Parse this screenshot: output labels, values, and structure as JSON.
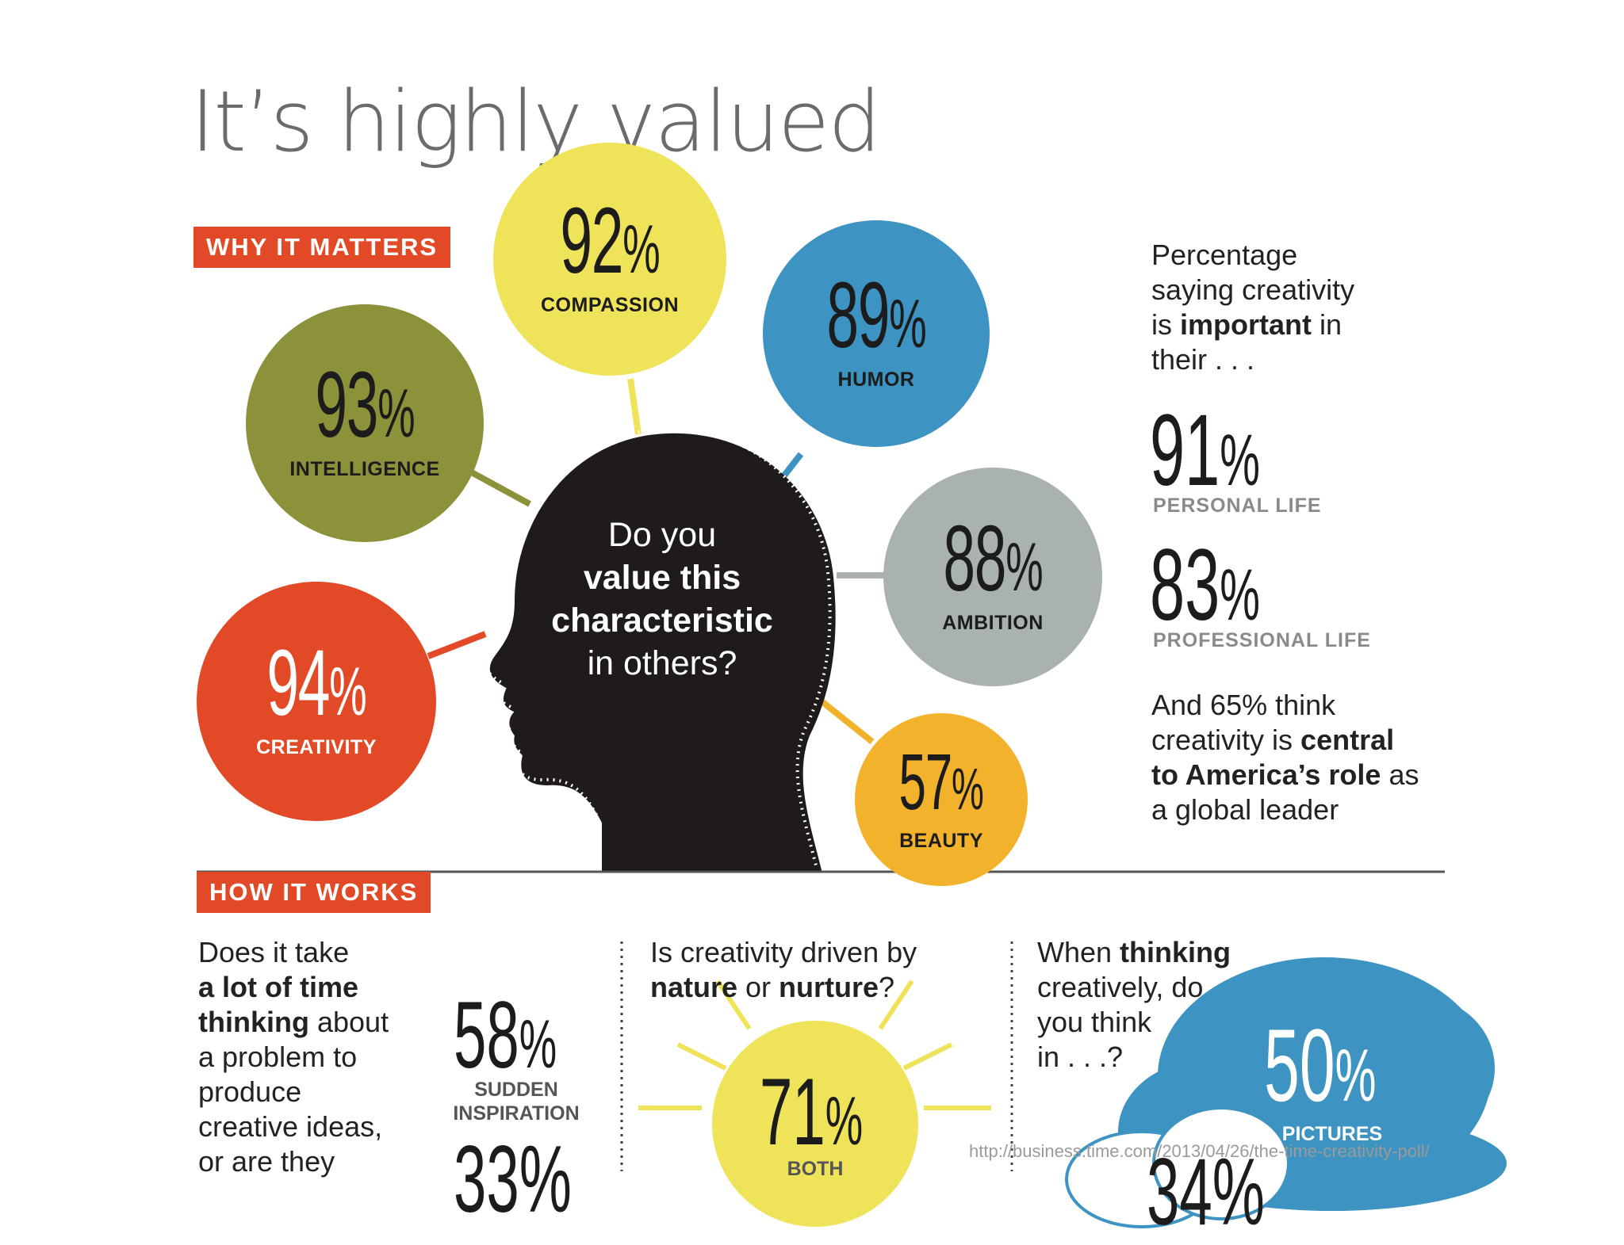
{
  "title": "It’s highly valued",
  "why": {
    "label": "WHY IT MATTERS",
    "question": [
      "Do you",
      "value this",
      "characteristic",
      "in others?"
    ],
    "bubbles": [
      {
        "key": "compassion",
        "value": "92",
        "unit": "%",
        "label": "COMPASSION",
        "color": "#efe35a"
      },
      {
        "key": "intelligence",
        "value": "93",
        "unit": "%",
        "label": "INTELLIGENCE",
        "color": "#8c9239"
      },
      {
        "key": "humor",
        "value": "89",
        "unit": "%",
        "label": "HUMOR",
        "color": "#3d93c1"
      },
      {
        "key": "ambition",
        "value": "88",
        "unit": "%",
        "label": "AMBITION",
        "color": "#aab1b1"
      },
      {
        "key": "creativity",
        "value": "94",
        "unit": "%",
        "label": "CREATIVITY",
        "color": "#e24a27"
      },
      {
        "key": "beauty",
        "value": "57",
        "unit": "%",
        "label": "BEAUTY",
        "color": "#f3b22b"
      }
    ],
    "side": {
      "intro": [
        "Percentage",
        "saying creativity",
        "is ",
        "important",
        " in",
        "their . . ."
      ],
      "personal": {
        "value": "91",
        "unit": "%",
        "label": "PERSONAL LIFE"
      },
      "professional": {
        "value": "83",
        "unit": "%",
        "label": "PROFESSIONAL LIFE"
      },
      "closing": [
        "And 65% think",
        "creativity is ",
        "central",
        "to America’s role",
        " as",
        "a global leader"
      ]
    }
  },
  "how": {
    "label": "HOW IT WORKS",
    "q1": {
      "lines": [
        "Does it take",
        "a lot of time",
        "thinking",
        " about",
        "a problem to",
        "produce",
        "creative ideas,",
        "or are they"
      ],
      "value": "58",
      "unit": "%",
      "label1": "SUDDEN",
      "label2": "INSPIRATION",
      "partial": "33%"
    },
    "q2": {
      "lines": [
        "Is creativity driven by",
        "nature",
        " or ",
        "nurture",
        "?"
      ],
      "value": "71",
      "unit": "%",
      "label": "BOTH"
    },
    "q3": {
      "lines": [
        "When ",
        "thinking",
        "creatively, do",
        "you think",
        "in . . .?"
      ],
      "value": "50",
      "unit": "%",
      "label": "PICTURES",
      "partial": "34%"
    }
  },
  "source": "http://business.time.com/2013/04/26/the-time-creativity-poll/"
}
